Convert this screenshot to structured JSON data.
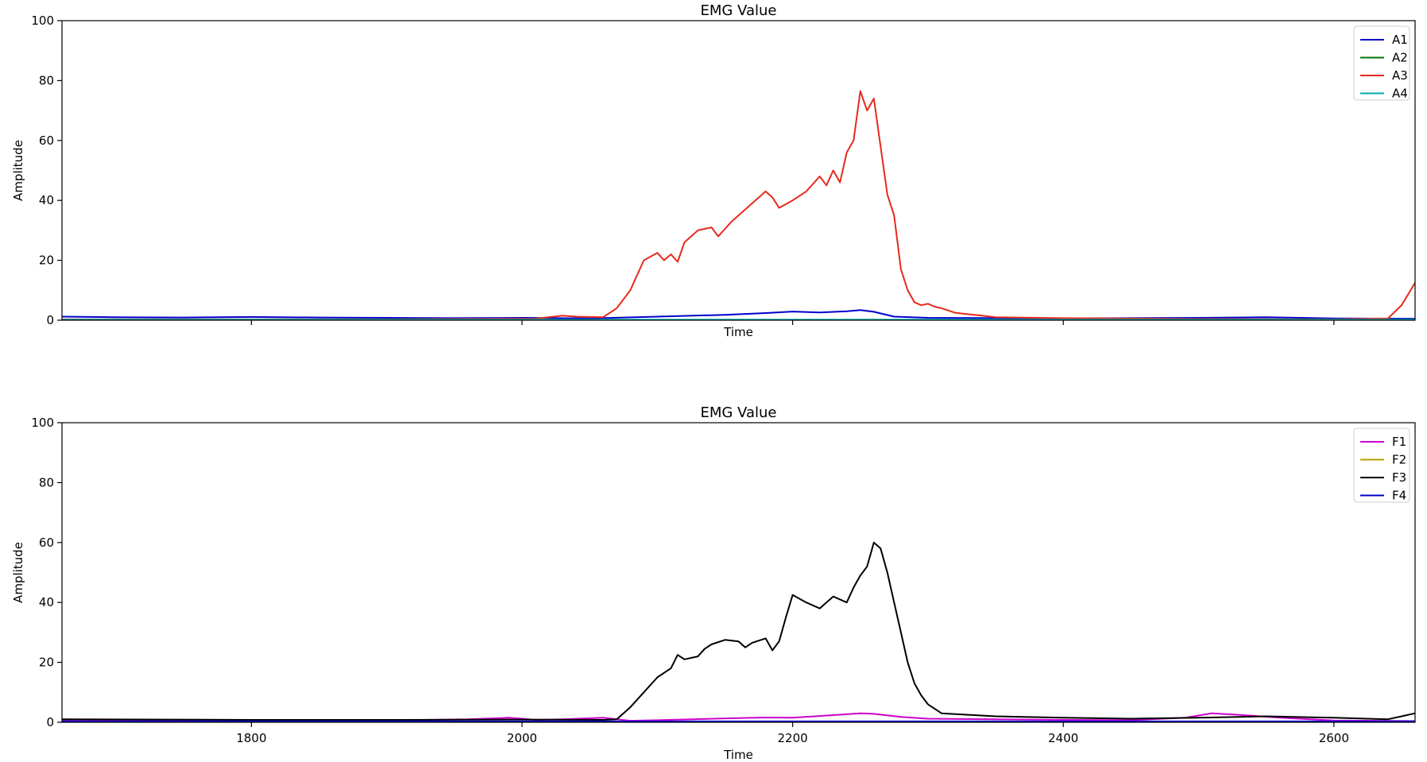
{
  "chart_data": [
    {
      "type": "line",
      "title": "EMG Value",
      "xlabel": "Time",
      "ylabel": "Amplitude",
      "xlim": [
        1660,
        2660
      ],
      "ylim": [
        0,
        100
      ],
      "yticks": [
        0,
        20,
        40,
        60,
        80,
        100
      ],
      "xticks": [
        1800,
        2000,
        2200,
        2400,
        2600
      ],
      "show_xtick_labels": false,
      "grid": false,
      "legend_position": "top-right",
      "series": [
        {
          "name": "A1",
          "color": "#0000cc",
          "x": [
            1660,
            1700,
            1750,
            1800,
            1850,
            1900,
            1950,
            2000,
            2050,
            2100,
            2150,
            2180,
            2200,
            2220,
            2240,
            2250,
            2260,
            2275,
            2300,
            2350,
            2400,
            2450,
            2500,
            2550,
            2600,
            2660
          ],
          "y": [
            1.2,
            1.0,
            0.9,
            1.1,
            0.9,
            0.8,
            0.7,
            0.8,
            0.6,
            1.2,
            1.8,
            2.4,
            2.9,
            2.6,
            3.0,
            3.4,
            2.8,
            1.2,
            0.8,
            0.7,
            0.6,
            0.7,
            0.8,
            1.0,
            0.6,
            0.5
          ]
        },
        {
          "name": "A2",
          "color": "#007700",
          "x": [
            1660,
            2660
          ],
          "y": [
            0.1,
            0.1
          ]
        },
        {
          "name": "A3",
          "color": "#e8291c",
          "x": [
            1660,
            1900,
            2010,
            2030,
            2040,
            2060,
            2070,
            2080,
            2085,
            2090,
            2100,
            2105,
            2110,
            2115,
            2120,
            2130,
            2140,
            2145,
            2150,
            2155,
            2160,
            2170,
            2180,
            2185,
            2190,
            2200,
            2210,
            2220,
            2225,
            2230,
            2235,
            2240,
            2245,
            2250,
            2255,
            2260,
            2265,
            2270,
            2275,
            2280,
            2285,
            2290,
            2295,
            2300,
            2305,
            2310,
            2320,
            2330,
            2340,
            2350,
            2400,
            2500,
            2600,
            2640,
            2650,
            2660
          ],
          "y": [
            0.3,
            0.3,
            0.5,
            1.5,
            1.2,
            1.0,
            4.0,
            10.0,
            15.0,
            20.0,
            22.5,
            20.0,
            22.0,
            19.5,
            26.0,
            30.0,
            31.0,
            28.0,
            30.5,
            33.0,
            35.0,
            39.0,
            43.0,
            41.0,
            37.5,
            40.0,
            43.0,
            48.0,
            45.0,
            50.0,
            46.0,
            56.0,
            60.0,
            76.5,
            70.0,
            74.0,
            58.0,
            42.0,
            35.0,
            17.0,
            10.0,
            6.0,
            5.0,
            5.5,
            4.5,
            4.0,
            2.5,
            2.0,
            1.5,
            1.0,
            0.7,
            0.4,
            0.3,
            0.6,
            5.0,
            12.5
          ]
        },
        {
          "name": "A4",
          "color": "#00aaaa",
          "x": [
            1660,
            2660
          ],
          "y": [
            0.2,
            0.2
          ]
        }
      ]
    },
    {
      "type": "line",
      "title": "EMG Value",
      "xlabel": "Time",
      "ylabel": "Amplitude",
      "xlim": [
        1660,
        2660
      ],
      "ylim": [
        0,
        100
      ],
      "yticks": [
        0,
        20,
        40,
        60,
        80,
        100
      ],
      "xticks": [
        1800,
        2000,
        2200,
        2400,
        2600
      ],
      "show_xtick_labels": true,
      "grid": false,
      "legend_position": "top-right",
      "series": [
        {
          "name": "F1",
          "color": "#cc00cc",
          "x": [
            1660,
            1800,
            1900,
            1960,
            1990,
            2000,
            2010,
            2030,
            2060,
            2080,
            2100,
            2150,
            2180,
            2200,
            2230,
            2250,
            2260,
            2280,
            2300,
            2350,
            2400,
            2450,
            2490,
            2510,
            2530,
            2560,
            2600,
            2660
          ],
          "y": [
            0.5,
            0.5,
            0.6,
            1.0,
            1.5,
            1.2,
            0.8,
            1.0,
            1.5,
            0.5,
            0.7,
            1.3,
            1.6,
            1.5,
            2.4,
            3.0,
            2.8,
            1.8,
            1.2,
            1.0,
            0.8,
            0.7,
            1.5,
            3.0,
            2.5,
            1.5,
            0.6,
            0.4
          ]
        },
        {
          "name": "F2",
          "color": "#b8a000",
          "x": [
            1660,
            2660
          ],
          "y": [
            0.2,
            0.2
          ]
        },
        {
          "name": "F3",
          "color": "#000000",
          "x": [
            1660,
            1800,
            1900,
            2000,
            2060,
            2070,
            2080,
            2090,
            2100,
            2110,
            2115,
            2120,
            2130,
            2135,
            2140,
            2150,
            2160,
            2165,
            2170,
            2180,
            2185,
            2190,
            2195,
            2200,
            2210,
            2220,
            2230,
            2240,
            2245,
            2250,
            2255,
            2260,
            2265,
            2270,
            2275,
            2280,
            2285,
            2290,
            2295,
            2300,
            2310,
            2330,
            2350,
            2400,
            2450,
            2500,
            2550,
            2600,
            2640,
            2650,
            2660
          ],
          "y": [
            1.0,
            0.8,
            0.8,
            0.9,
            0.8,
            1.0,
            5.0,
            10.0,
            15.0,
            18.0,
            22.5,
            21.0,
            22.0,
            24.5,
            26.0,
            27.5,
            27.0,
            25.0,
            26.5,
            28.0,
            24.0,
            27.0,
            35.0,
            42.5,
            40.0,
            38.0,
            42.0,
            40.0,
            45.0,
            49.0,
            52.0,
            60.0,
            58.0,
            50.0,
            40.0,
            30.0,
            20.0,
            13.0,
            9.0,
            6.0,
            3.0,
            2.5,
            2.0,
            1.5,
            1.2,
            1.5,
            2.0,
            1.5,
            1.0,
            2.0,
            3.0
          ]
        },
        {
          "name": "F4",
          "color": "#0000cc",
          "x": [
            1660,
            2660
          ],
          "y": [
            0.3,
            0.3
          ]
        }
      ]
    }
  ]
}
